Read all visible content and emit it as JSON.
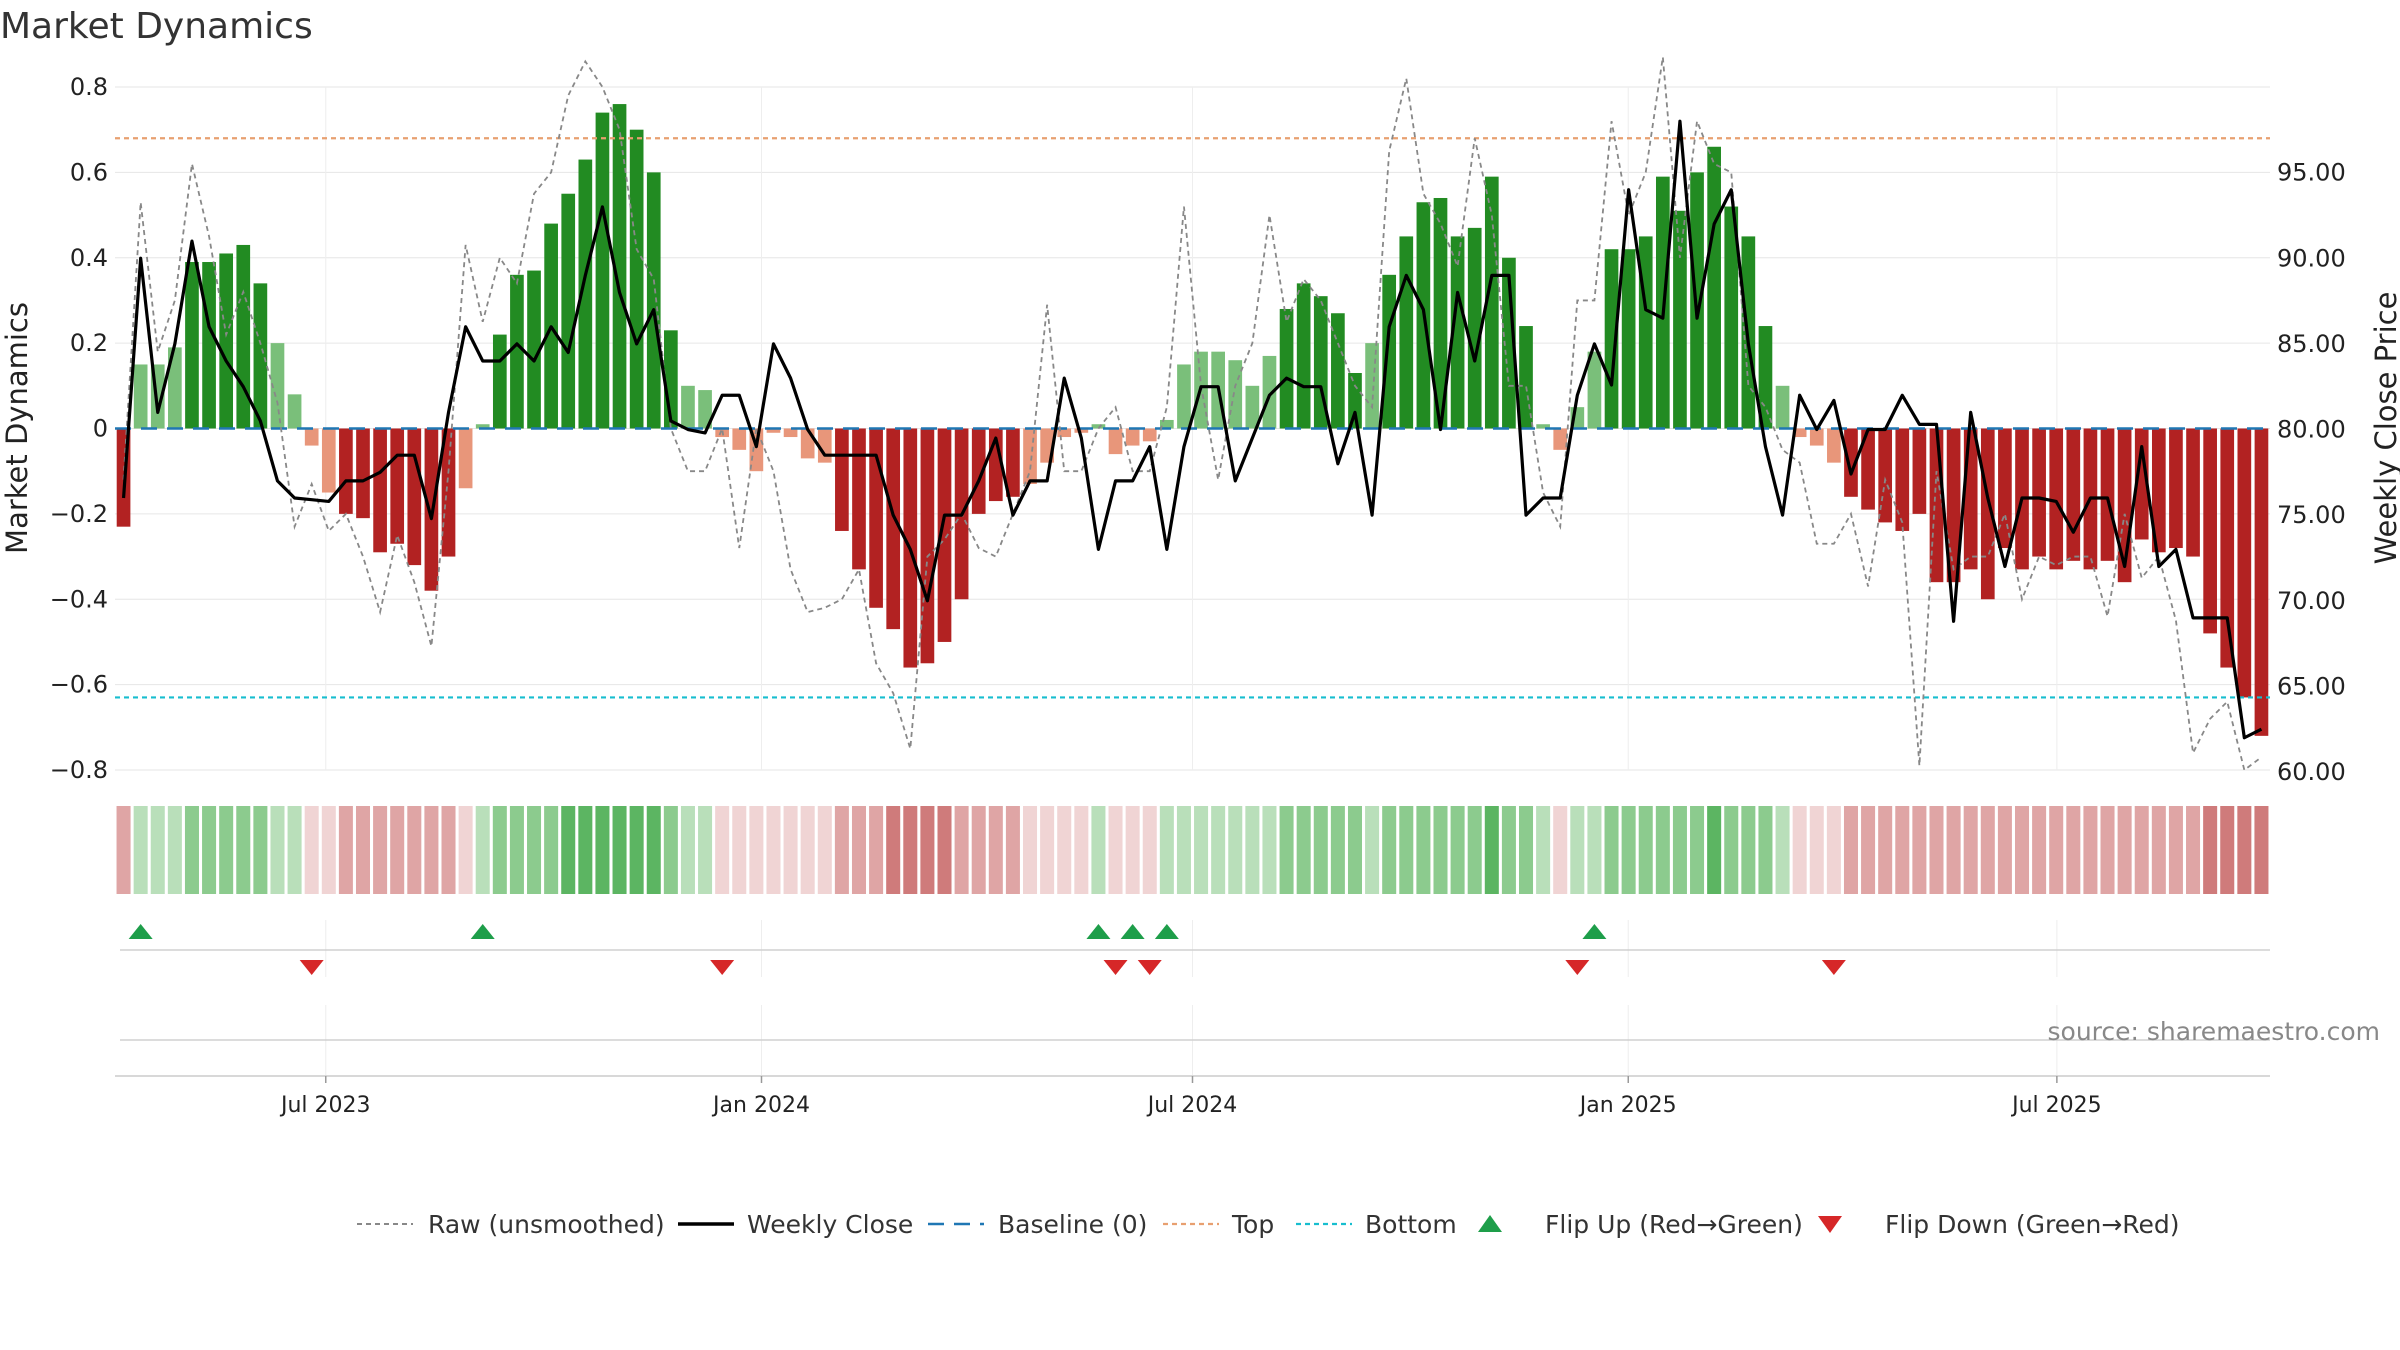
{
  "chart_data": {
    "type": "bar",
    "title": "Market Dynamics",
    "ylabel": "Market Dynamics",
    "y2label": "Weekly Close Price",
    "ylim": [
      -0.8,
      0.8
    ],
    "y2lim": [
      60,
      99.3
    ],
    "yticks": [
      "0.8",
      "0.6",
      "0.4",
      "0.2",
      "0",
      "−0.2",
      "−0.4",
      "−0.6",
      "−0.8"
    ],
    "y2ticks": [
      "95.00",
      "90.00",
      "85.00",
      "80.00",
      "75.00",
      "70.00",
      "65.00",
      "60.00"
    ],
    "x_start": "2023-04-03",
    "x_end": "2025-09-29",
    "x_ticks": [
      {
        "date": "2023-07-01",
        "label": "Jul 2023"
      },
      {
        "date": "2024-01-01",
        "label": "Jan 2024"
      },
      {
        "date": "2024-07-01",
        "label": "Jul 2024"
      },
      {
        "date": "2025-01-01",
        "label": "Jan 2025"
      },
      {
        "date": "2025-07-01",
        "label": "Jul 2025"
      }
    ],
    "top_threshold": 0.68,
    "bottom_threshold": -0.63,
    "values": [
      -0.23,
      0.15,
      0.15,
      0.19,
      0.39,
      0.39,
      0.41,
      0.43,
      0.34,
      0.2,
      0.08,
      -0.04,
      -0.15,
      -0.2,
      -0.21,
      -0.29,
      -0.27,
      -0.32,
      -0.38,
      -0.3,
      -0.14,
      0.01,
      0.22,
      0.36,
      0.37,
      0.48,
      0.55,
      0.63,
      0.74,
      0.76,
      0.7,
      0.6,
      0.23,
      0.1,
      0.09,
      -0.02,
      -0.05,
      -0.1,
      -0.01,
      -0.02,
      -0.07,
      -0.08,
      -0.24,
      -0.33,
      -0.42,
      -0.47,
      -0.56,
      -0.55,
      -0.5,
      -0.4,
      -0.2,
      -0.17,
      -0.16,
      -0.13,
      -0.08,
      -0.02,
      -0.01,
      0.01,
      -0.06,
      -0.04,
      -0.03,
      0.02,
      0.15,
      0.18,
      0.18,
      0.16,
      0.1,
      0.17,
      0.28,
      0.34,
      0.31,
      0.27,
      0.13,
      0.2,
      0.36,
      0.45,
      0.53,
      0.54,
      0.45,
      0.47,
      0.59,
      0.4,
      0.24,
      0.01,
      -0.05,
      0.05,
      0.18,
      0.42,
      0.42,
      0.45,
      0.59,
      0.51,
      0.6,
      0.66,
      0.52,
      0.45,
      0.24,
      0.1,
      -0.02,
      -0.04,
      -0.08,
      -0.16,
      -0.19,
      -0.22,
      -0.24,
      -0.2,
      -0.36,
      -0.36,
      -0.33,
      -0.4,
      -0.28,
      -0.33,
      -0.3,
      -0.33,
      -0.31,
      -0.33,
      -0.31,
      -0.36,
      -0.26,
      -0.29,
      -0.28,
      -0.3,
      -0.48,
      -0.56,
      -0.63,
      -0.72
    ],
    "series": [
      {
        "name": "Raw (unsmoothed)",
        "values": [
          -0.12,
          0.53,
          0.18,
          0.3,
          0.62,
          0.45,
          0.22,
          0.32,
          0.2,
          0.06,
          -0.23,
          -0.13,
          -0.24,
          -0.2,
          -0.3,
          -0.43,
          -0.25,
          -0.36,
          -0.51,
          -0.1,
          0.43,
          0.25,
          0.4,
          0.34,
          0.55,
          0.6,
          0.78,
          0.86,
          0.8,
          0.7,
          0.42,
          0.35,
          0.0,
          -0.1,
          -0.1,
          0.0,
          -0.28,
          0.0,
          -0.1,
          -0.33,
          -0.43,
          -0.42,
          -0.4,
          -0.33,
          -0.55,
          -0.62,
          -0.75,
          -0.3,
          -0.26,
          -0.2,
          -0.28,
          -0.3,
          -0.2,
          -0.1,
          0.29,
          -0.1,
          -0.1,
          0.0,
          0.05,
          -0.1,
          -0.1,
          0.05,
          0.52,
          0.1,
          -0.12,
          0.1,
          0.2,
          0.5,
          0.25,
          0.35,
          0.3,
          0.2,
          0.1,
          0.05,
          0.65,
          0.82,
          0.55,
          0.48,
          0.38,
          0.68,
          0.5,
          0.1,
          0.1,
          -0.15,
          -0.23,
          0.3,
          0.3,
          0.72,
          0.5,
          0.6,
          0.87,
          0.4,
          0.72,
          0.62,
          0.6,
          0.1,
          0.05,
          -0.05,
          -0.08,
          -0.27,
          -0.27,
          -0.2,
          -0.37,
          -0.12,
          -0.22,
          -0.79,
          -0.1,
          -0.33,
          -0.3,
          -0.3,
          -0.2,
          -0.4,
          -0.3,
          -0.32,
          -0.3,
          -0.3,
          -0.44,
          -0.2,
          -0.35,
          -0.3,
          -0.45,
          -0.76,
          -0.68,
          -0.64,
          -0.8,
          -0.77
        ]
      },
      {
        "name": "Weekly Close",
        "values": [
          76,
          90,
          81,
          85,
          91,
          86,
          84,
          82.5,
          80.5,
          77,
          76,
          75.9,
          75.8,
          77,
          77,
          77.5,
          78.5,
          78.5,
          74.8,
          81,
          86,
          84,
          84,
          85,
          84,
          86,
          84.5,
          89,
          93,
          88,
          85,
          87,
          80.5,
          80,
          79.8,
          82,
          82,
          79,
          85,
          83,
          80,
          78.5,
          78.5,
          78.5,
          78.5,
          75,
          73,
          70,
          75,
          75,
          77,
          79.5,
          75,
          77,
          77,
          83,
          79.5,
          73,
          77,
          77,
          79,
          73,
          79,
          82.5,
          82.5,
          77,
          79.5,
          82,
          83,
          82.5,
          82.5,
          78,
          81,
          75,
          86,
          89,
          87,
          80,
          88,
          84,
          89,
          89,
          75,
          76,
          76,
          82,
          85,
          82.6,
          94,
          87,
          86.5,
          98,
          86.5,
          92,
          94,
          85,
          79,
          75,
          82,
          80,
          81.7,
          77.4,
          80,
          80,
          82,
          80.3,
          80.3,
          68.8,
          81,
          76,
          72,
          76,
          76,
          75.8,
          74,
          76,
          76,
          72,
          79,
          72,
          73,
          69,
          69,
          69,
          62,
          62.5
        ]
      }
    ],
    "strip": [
      -2,
      1,
      1,
      1,
      2,
      2,
      2,
      2,
      2,
      1,
      1,
      -1,
      -1,
      -2,
      -2,
      -2,
      -2,
      -2,
      -2,
      -2,
      -1,
      1,
      2,
      2,
      2,
      2,
      3,
      3,
      3,
      3,
      3,
      3,
      2,
      1,
      1,
      -1,
      -1,
      -1,
      -1,
      -1,
      -1,
      -1,
      -2,
      -2,
      -2,
      -3,
      -3,
      -3,
      -3,
      -2,
      -2,
      -2,
      -2,
      -1,
      -1,
      -1,
      -1,
      1,
      -1,
      -1,
      -1,
      1,
      1,
      1,
      1,
      1,
      1,
      1,
      2,
      2,
      2,
      2,
      2,
      1,
      2,
      2,
      2,
      2,
      2,
      2,
      3,
      2,
      2,
      1,
      -1,
      1,
      1,
      2,
      2,
      2,
      2,
      2,
      2,
      3,
      2,
      2,
      2,
      1,
      -1,
      -1,
      -1,
      -2,
      -2,
      -2,
      -2,
      -2,
      -2,
      -2,
      -2,
      -2,
      -2,
      -2,
      -2,
      -2,
      -2,
      -2,
      -2,
      -2,
      -2,
      -2,
      -2,
      -2,
      -3,
      -3,
      -3,
      -3
    ],
    "flip_up": [
      1,
      21,
      57,
      59,
      61,
      86
    ],
    "flip_down": [
      11,
      35,
      58,
      60,
      85,
      100
    ],
    "colors": {
      "bar_pos_strong": "#228B22",
      "bar_pos_weak": "#7ABF7A",
      "bar_neg_strong": "#B22222",
      "bar_neg_weak": "#E8967A",
      "raw_line": "#888888",
      "close_line": "#000000",
      "baseline": "#1F77B4",
      "top_line": "#E8A070",
      "bottom_line": "#17BECF",
      "flip_up": "#1E9E4A",
      "flip_down": "#D62728"
    },
    "legend": [
      {
        "key": "raw",
        "label": "Raw (unsmoothed)"
      },
      {
        "key": "close",
        "label": "Weekly Close"
      },
      {
        "key": "baseline",
        "label": "Baseline (0)"
      },
      {
        "key": "top",
        "label": "Top"
      },
      {
        "key": "bottom",
        "label": "Bottom"
      },
      {
        "key": "flipup",
        "label": "Flip Up (Red→Green)"
      },
      {
        "key": "flipdown",
        "label": "Flip Down (Green→Red)"
      }
    ],
    "legend_position": "bottom-center",
    "grid": true
  },
  "source": "source: sharemaestro.com"
}
